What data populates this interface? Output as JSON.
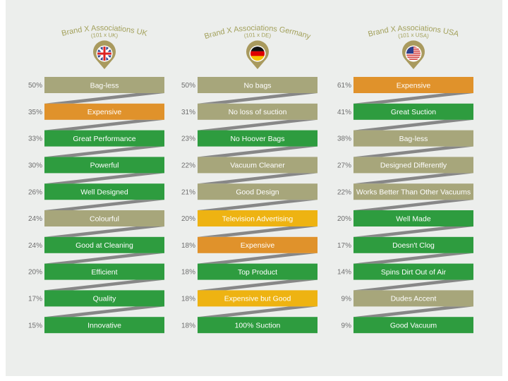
{
  "columns": [
    {
      "title": "Brand X Associations UK",
      "subtitle": "(101 x UK)",
      "items": [
        {
          "percent": "50%",
          "label": "Bag-less",
          "color": "#a7a67b"
        },
        {
          "percent": "35%",
          "label": "Expensive",
          "color": "#e0922b"
        },
        {
          "percent": "33%",
          "label": "Great Performance",
          "color": "#2e9c3f"
        },
        {
          "percent": "30%",
          "label": "Powerful",
          "color": "#2e9c3f"
        },
        {
          "percent": "26%",
          "label": "Well Designed",
          "color": "#2e9c3f"
        },
        {
          "percent": "24%",
          "label": "Colourful",
          "color": "#a7a67b"
        },
        {
          "percent": "24%",
          "label": "Good at Cleaning",
          "color": "#2e9c3f"
        },
        {
          "percent": "20%",
          "label": "Efficient",
          "color": "#2e9c3f"
        },
        {
          "percent": "17%",
          "label": "Quality",
          "color": "#2e9c3f"
        },
        {
          "percent": "15%",
          "label": "Innovative",
          "color": "#2e9c3f"
        }
      ]
    },
    {
      "title": "Brand X Associations Germany",
      "subtitle": "(101 x DE)",
      "items": [
        {
          "percent": "50%",
          "label": "No bags",
          "color": "#a7a67b"
        },
        {
          "percent": "31%",
          "label": "No loss of suction",
          "color": "#a7a67b"
        },
        {
          "percent": "23%",
          "label": "No Hoover Bags",
          "color": "#2e9c3f"
        },
        {
          "percent": "22%",
          "label": "Vacuum Cleaner",
          "color": "#a7a67b"
        },
        {
          "percent": "21%",
          "label": "Good Design",
          "color": "#a7a67b"
        },
        {
          "percent": "20%",
          "label": "Television Advertising",
          "color": "#eeb312"
        },
        {
          "percent": "18%",
          "label": "Expensive",
          "color": "#e0922b"
        },
        {
          "percent": "18%",
          "label": "Top Product",
          "color": "#2e9c3f"
        },
        {
          "percent": "18%",
          "label": "Expensive but Good",
          "color": "#eeb312"
        },
        {
          "percent": "18%",
          "label": "100% Suction",
          "color": "#2e9c3f"
        }
      ]
    },
    {
      "title": "Brand X Associations USA",
      "subtitle": "(101 x USA)",
      "items": [
        {
          "percent": "61%",
          "label": "Expensive",
          "color": "#e0922b"
        },
        {
          "percent": "41%",
          "label": "Great Suction",
          "color": "#2e9c3f"
        },
        {
          "percent": "38%",
          "label": "Bag-less",
          "color": "#a7a67b"
        },
        {
          "percent": "27%",
          "label": "Designed Differently",
          "color": "#a7a67b"
        },
        {
          "percent": "22%",
          "label": "Works Better Than Other Vacuums",
          "color": "#a7a67b"
        },
        {
          "percent": "20%",
          "label": "Well Made",
          "color": "#2e9c3f"
        },
        {
          "percent": "17%",
          "label": "Doesn't Clog",
          "color": "#2e9c3f"
        },
        {
          "percent": "14%",
          "label": "Spins Dirt Out of Air",
          "color": "#2e9c3f"
        },
        {
          "percent": "9%",
          "label": "Dudes Accent",
          "color": "#a7a67b"
        },
        {
          "percent": "9%",
          "label": "Good Vacuum",
          "color": "#2e9c3f"
        }
      ]
    }
  ]
}
